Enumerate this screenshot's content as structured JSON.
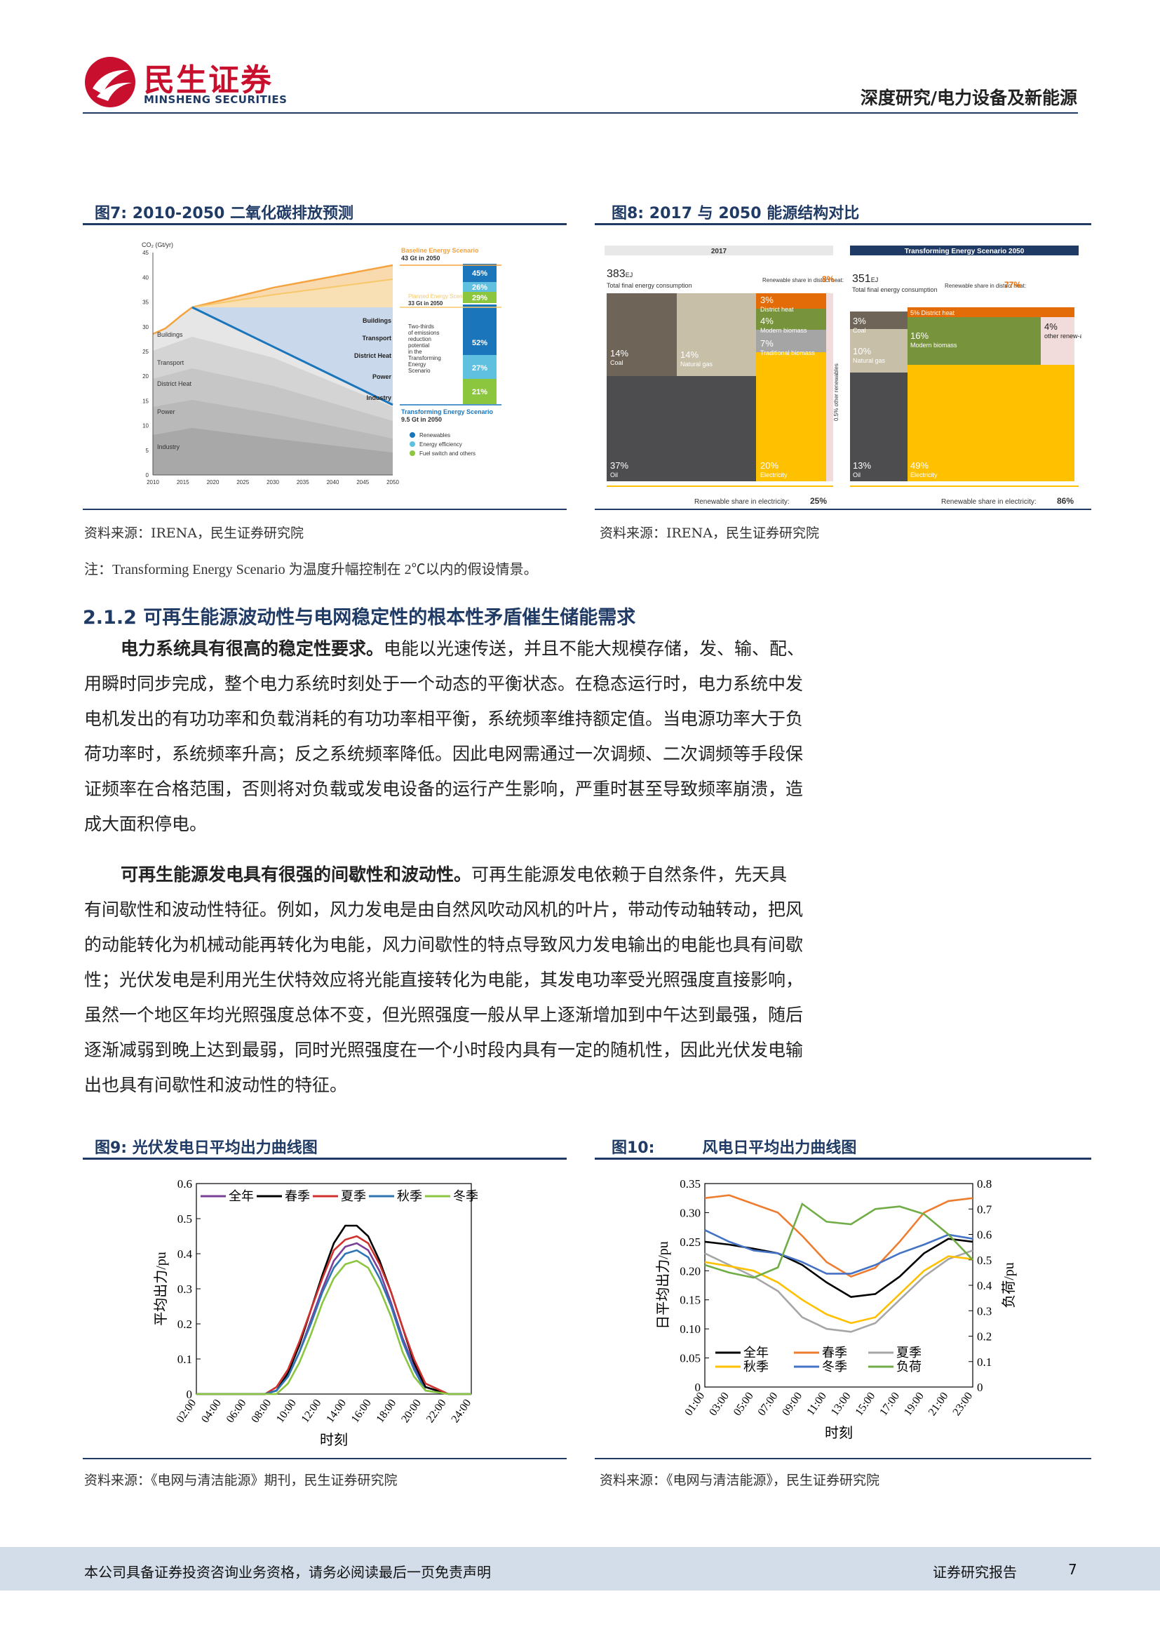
{
  "header": {
    "logo_cn": "民生证券",
    "logo_en": "MINSHENG SECURITIES",
    "category": "深度研究/电力设备及新能源"
  },
  "fig7": {
    "title": "图7: 2010-2050 二氧化碳排放预测",
    "source": "资料来源：IRENA，民生证券研究院",
    "y_axis_label": "CO₂ (Gt/yr)",
    "y_ticks": [
      "0",
      "5",
      "10",
      "15",
      "20",
      "25",
      "30",
      "35",
      "40",
      "45"
    ],
    "x_ticks": [
      "2010",
      "2015",
      "2020",
      "2025",
      "2030",
      "2035",
      "2040",
      "2045",
      "2050"
    ],
    "sector_labels_left": [
      "Buildings",
      "Transport",
      "District Heat",
      "Power",
      "Industry"
    ],
    "sector_labels_right": [
      "Buildings",
      "Transport",
      "District Heat",
      "Power",
      "Industry"
    ],
    "baseline_title": "Baseline Energy Scenario",
    "baseline_value": "43 Gt in 2050",
    "planned_title": "Planned Energy Scenario",
    "planned_value": "33 Gt in 2050",
    "transforming_title": "Transforming Energy Scenario",
    "transforming_value": "9.5 Gt in 2050",
    "two_thirds_note": [
      "Two-thirds",
      "of emissions",
      "reduction",
      "potential",
      "in the",
      "Transforming",
      "Energy",
      "Scenario"
    ],
    "bar_pcts": [
      "45%",
      "26%",
      "29%",
      "52%",
      "27%",
      "21%"
    ],
    "legend": [
      "Renewables",
      "Energy efficiency",
      "Fuel switch and others"
    ],
    "colors": {
      "renewables": "#1b75bb",
      "efficiency": "#5fc1df",
      "fuel_switch": "#8cc63f",
      "baseline": "#f4a340",
      "planned": "#f6c86a"
    }
  },
  "fig8": {
    "title": "图8: 2017 与 2050 能源结构对比",
    "source": "资料来源：IRENA，民生证券研究院",
    "left": {
      "header": "2017",
      "total_value": "383",
      "total_unit": "EJ",
      "total_label": "Total final energy consumption",
      "district_share_label": "Renewable share in district heat:",
      "district_share_value": "8%",
      "blocks": [
        {
          "pct": "14%",
          "name": "Coal"
        },
        {
          "pct": "14%",
          "name": "Natural gas"
        },
        {
          "pct": "37%",
          "name": "Oil"
        },
        {
          "pct": "3%",
          "name": "District heat"
        },
        {
          "pct": "4%",
          "name": "Modern biomass"
        },
        {
          "pct": "7%",
          "name": "Traditional biomass"
        },
        {
          "pct": "20%",
          "name": "Electricity"
        }
      ],
      "side_note": "0.5% other renewables",
      "elec_share_label": "Renewable share in electricity:",
      "elec_share_value": "25%"
    },
    "right": {
      "header": "Transforming Energy Scenario 2050",
      "total_value": "351",
      "total_unit": "EJ",
      "total_label": "Total final energy consumption",
      "district_share_label": "Renewable share in district heat:",
      "district_share_value": "77%",
      "blocks": [
        {
          "pct": "3%",
          "name": "Coal"
        },
        {
          "pct": "5%",
          "name": "District heat"
        },
        {
          "pct": "16%",
          "name": "Modern biomass"
        },
        {
          "pct": "4%",
          "name": "other renew-ables"
        },
        {
          "pct": "10%",
          "name": "Natural gas"
        },
        {
          "pct": "13%",
          "name": "Oil"
        },
        {
          "pct": "49%",
          "name": "Electricity"
        }
      ],
      "elec_share_label": "Renewable share in electricity:",
      "elec_share_value": "86%"
    }
  },
  "note": "注：Transforming Energy Scenario 为温度升幅控制在 2℃以内的假设情景。",
  "section": {
    "title": "2.1.2 可再生能源波动性与电网稳定性的根本性矛盾催生储能需求"
  },
  "paragraphs": {
    "p1_bold": "电力系统具有很高的稳定性要求。",
    "p1_lines": [
      "电能以光速传送，并且不能大规模存储，发、输、配、",
      "用瞬时同步完成，整个电力系统时刻处于一个动态的平衡状态。在稳态运行时，电力系统中发",
      "电机发出的有功功率和负载消耗的有功功率相平衡，系统频率维持额定值。当电源功率大于负",
      "荷功率时，系统频率升高；反之系统频率降低。因此电网需通过一次调频、二次调频等手段保",
      "证频率在合格范围，否则将对负载或发电设备的运行产生影响，严重时甚至导致频率崩溃，造",
      "成大面积停电。"
    ],
    "p2_bold": "可再生能源发电具有很强的间歇性和波动性。",
    "p2_lines": [
      "可再生能源发电依赖于自然条件，先天具",
      "有间歇性和波动性特征。例如，风力发电是由自然风吹动风机的叶片，带动传动轴转动，把风",
      "的动能转化为机械动能再转化为电能，风力间歇性的特点导致风力发电输出的电能也具有间歇",
      "性；光伏发电是利用光生伏特效应将光能直接转化为电能，其发电功率受光照强度直接影响，",
      "虽然一个地区年均光照强度总体不变，但光照强度一般从早上逐渐增加到中午达到最强，随后",
      "逐渐减弱到晚上达到最弱，同时光照强度在一个小时段内具有一定的随机性，因此光伏发电输",
      "出也具有间歇性和波动性的特征。"
    ]
  },
  "fig9": {
    "title": "图9: 光伏发电日平均出力曲线图",
    "source": "资料来源：《电网与清洁能源》期刊，民生证券研究院"
  },
  "fig10": {
    "title_num": "图10:",
    "title_text": "风电日平均出力曲线图",
    "source": "资料来源：《电网与清洁能源》，民生证券研究院"
  },
  "chart_data": [
    {
      "type": "line",
      "id": "fig9",
      "ylabel": "平均出力/pu",
      "xlabel": "时刻",
      "ylim": [
        0,
        0.6
      ],
      "y_ticks": [
        "0",
        "0.1",
        "0.2",
        "0.3",
        "0.4",
        "0.5",
        "0.6"
      ],
      "x_ticks": [
        "02:00",
        "04:00",
        "06:00",
        "08:00",
        "10:00",
        "12:00",
        "14:00",
        "16:00",
        "18:00",
        "20:00",
        "22:00",
        "24:00"
      ],
      "x": [
        0,
        2,
        4,
        6,
        7,
        8,
        9,
        10,
        11,
        12,
        13,
        14,
        15,
        16,
        17,
        18,
        19,
        20,
        22,
        24
      ],
      "series": [
        {
          "name": "全年",
          "color": "#7b3f98",
          "values": [
            0,
            0,
            0,
            0,
            0.01,
            0.05,
            0.12,
            0.21,
            0.3,
            0.38,
            0.42,
            0.43,
            0.41,
            0.35,
            0.26,
            0.16,
            0.08,
            0.02,
            0,
            0
          ]
        },
        {
          "name": "春季",
          "color": "#000000",
          "values": [
            0,
            0,
            0,
            0,
            0.01,
            0.06,
            0.14,
            0.24,
            0.34,
            0.43,
            0.48,
            0.48,
            0.45,
            0.38,
            0.29,
            0.19,
            0.09,
            0.02,
            0,
            0
          ]
        },
        {
          "name": "夏季",
          "color": "#d0312d",
          "values": [
            0,
            0,
            0,
            0,
            0.02,
            0.07,
            0.15,
            0.24,
            0.33,
            0.41,
            0.44,
            0.45,
            0.43,
            0.37,
            0.29,
            0.19,
            0.1,
            0.03,
            0,
            0
          ]
        },
        {
          "name": "秋季",
          "color": "#2e75b6",
          "values": [
            0,
            0,
            0,
            0,
            0.01,
            0.05,
            0.12,
            0.2,
            0.29,
            0.36,
            0.4,
            0.41,
            0.39,
            0.33,
            0.25,
            0.15,
            0.07,
            0.01,
            0,
            0
          ]
        },
        {
          "name": "冬季",
          "color": "#8cc63f",
          "values": [
            0,
            0,
            0,
            0,
            0,
            0.03,
            0.09,
            0.17,
            0.26,
            0.33,
            0.37,
            0.38,
            0.36,
            0.3,
            0.22,
            0.12,
            0.05,
            0.01,
            0,
            0
          ]
        }
      ],
      "legend": "top"
    },
    {
      "type": "line",
      "id": "fig10",
      "ylabel": "日平均出力/pu",
      "ylabel_right": "负荷/pu",
      "xlabel": "时刻",
      "ylim": [
        0,
        0.35
      ],
      "ylim_right": [
        0,
        0.8
      ],
      "y_ticks": [
        "0",
        "0.05",
        "0.10",
        "0.15",
        "0.20",
        "0.25",
        "0.30",
        "0.35"
      ],
      "y_ticks_right": [
        "0",
        "0.1",
        "0.2",
        "0.3",
        "0.4",
        "0.5",
        "0.6",
        "0.7",
        "0.8"
      ],
      "x_ticks": [
        "01:00",
        "03:00",
        "05:00",
        "07:00",
        "09:00",
        "11:00",
        "13:00",
        "15:00",
        "17:00",
        "19:00",
        "21:00",
        "23:00"
      ],
      "x": [
        1,
        3,
        5,
        7,
        9,
        11,
        13,
        15,
        17,
        19,
        21,
        23
      ],
      "series": [
        {
          "name": "全年",
          "color": "#000000",
          "values": [
            0.25,
            0.245,
            0.238,
            0.23,
            0.21,
            0.18,
            0.155,
            0.16,
            0.19,
            0.23,
            0.255,
            0.25
          ]
        },
        {
          "name": "春季",
          "color": "#ed7d31",
          "values": [
            0.325,
            0.33,
            0.315,
            0.3,
            0.26,
            0.215,
            0.19,
            0.205,
            0.25,
            0.3,
            0.32,
            0.325
          ]
        },
        {
          "name": "夏季",
          "color": "#a6a6a6",
          "values": [
            0.23,
            0.21,
            0.19,
            0.165,
            0.12,
            0.1,
            0.095,
            0.11,
            0.15,
            0.19,
            0.22,
            0.235
          ]
        },
        {
          "name": "秋季",
          "color": "#ffc000",
          "values": [
            0.215,
            0.208,
            0.2,
            0.18,
            0.15,
            0.125,
            0.11,
            0.12,
            0.16,
            0.2,
            0.225,
            0.22
          ]
        },
        {
          "name": "冬季",
          "color": "#4472c4",
          "values": [
            0.27,
            0.25,
            0.235,
            0.23,
            0.215,
            0.195,
            0.195,
            0.21,
            0.23,
            0.245,
            0.262,
            0.255
          ]
        },
        {
          "name": "负荷",
          "color": "#70ad47",
          "axis": "right",
          "values": [
            0.48,
            0.45,
            0.43,
            0.47,
            0.72,
            0.65,
            0.64,
            0.7,
            0.71,
            0.68,
            0.6,
            0.5
          ]
        }
      ],
      "legend": "bottom"
    }
  ],
  "footer": {
    "disclaimer": "本公司具备证券投资咨询业务资格，请务必阅读最后一页免责声明",
    "doc_type": "证券研究报告",
    "page_number": "7"
  }
}
